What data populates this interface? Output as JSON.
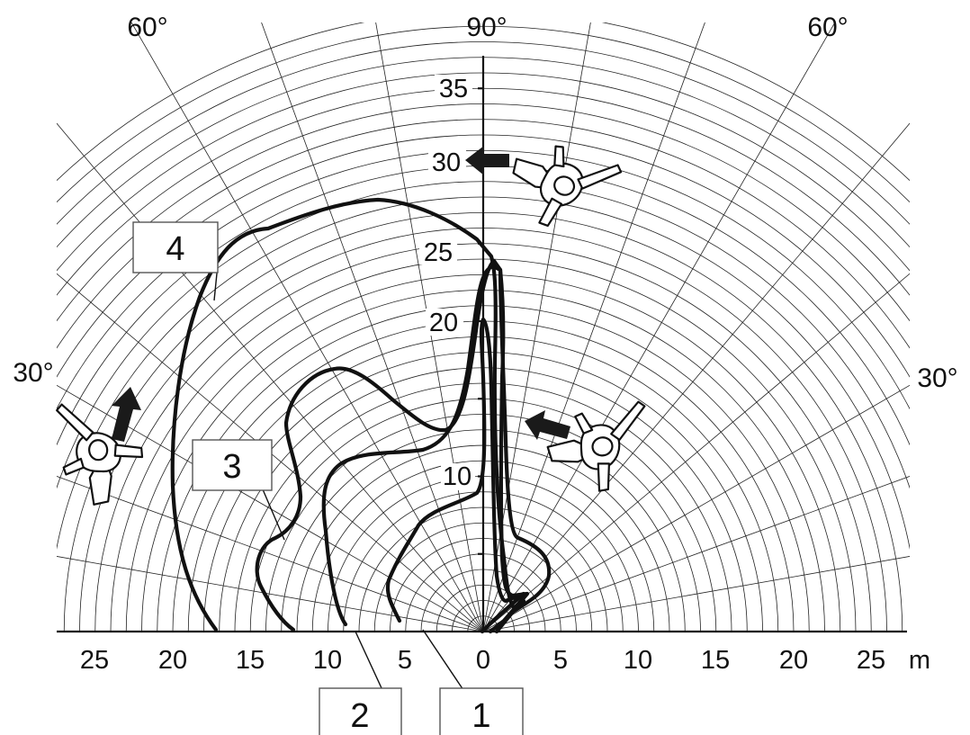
{
  "axis": {
    "x_tick_labels": [
      "25",
      "20",
      "15",
      "10",
      "5",
      "0",
      "5",
      "10",
      "15",
      "20",
      "25"
    ],
    "x_unit": "m",
    "y_tick_labels": [
      "10",
      "20",
      "25",
      "30",
      "35"
    ],
    "angle_labels": {
      "left_60": "60°",
      "top_90": "90°",
      "right_60": "60°",
      "left_30": "30°",
      "right_30": "30°"
    }
  },
  "curve_labels": [
    "1",
    "2",
    "3",
    "4"
  ],
  "colors": {
    "ink": "#111111",
    "background": "#ffffff",
    "label_box_border": "#555555"
  },
  "icons": [
    "person-top-view-icon",
    "direction-arrow-icon"
  ]
}
